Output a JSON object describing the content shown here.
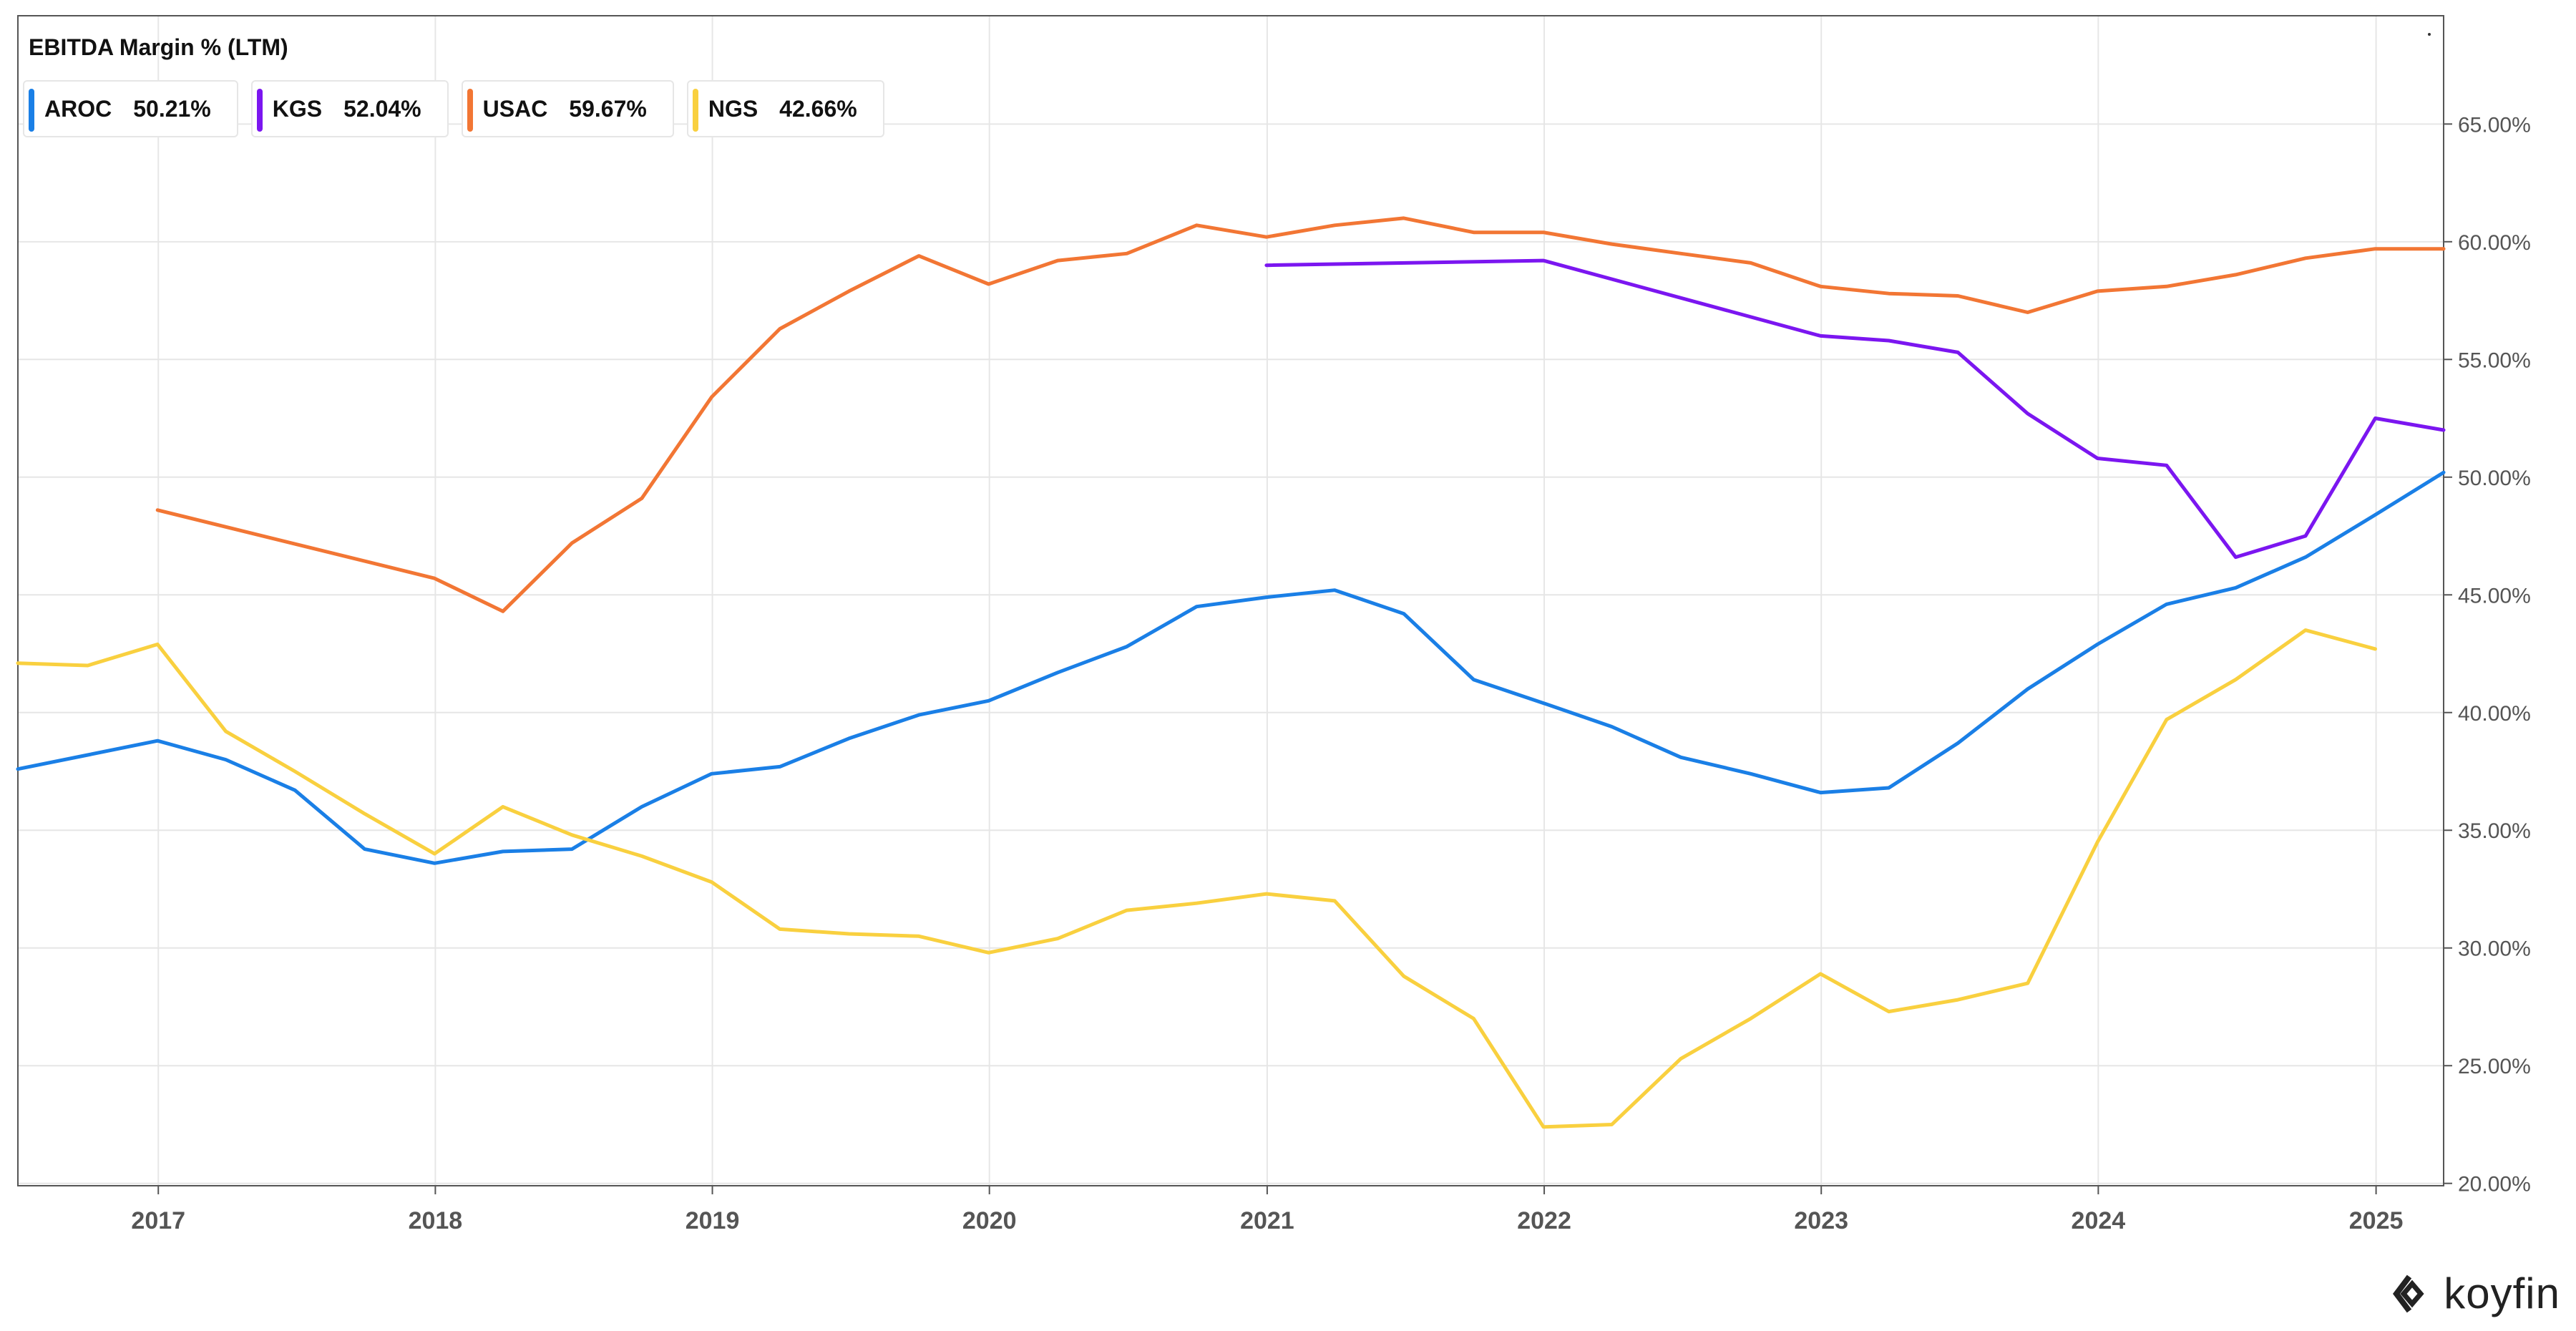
{
  "colors": {
    "AROC": "#1a7fe6",
    "KGS": "#7b16f0",
    "USAC": "#f27634",
    "NGS": "#f9d03f",
    "axis": "#555555",
    "grid": "#e6e6e6"
  },
  "branding": {
    "logo_text": "koyfin",
    "logo_icon": "koyfin-mark-icon"
  },
  "chart_data": {
    "type": "line",
    "title": "EBITDA Margin % (LTM)",
    "xlabel": "",
    "ylabel": "",
    "x_ticks": [
      "2017",
      "2018",
      "2019",
      "2020",
      "2021",
      "2022",
      "2023",
      "2024",
      "2025"
    ],
    "y_ticks": [
      "20.00%",
      "25.00%",
      "30.00%",
      "35.00%",
      "40.00%",
      "45.00%",
      "50.00%",
      "55.00%",
      "60.00%",
      "65.00%"
    ],
    "ylim": [
      19.9,
      69.6
    ],
    "xlim": [
      "2016-06-30",
      "2025-03-31"
    ],
    "y_axis_position": "right",
    "grid": true,
    "legend_position": "top-left",
    "series": [
      {
        "name": "AROC",
        "latest_label": "50.21%",
        "points": [
          [
            "2016-06-30",
            37.6
          ],
          [
            "2016-09-30",
            38.2
          ],
          [
            "2016-12-31",
            38.8
          ],
          [
            "2017-03-31",
            38.0
          ],
          [
            "2017-06-30",
            36.7
          ],
          [
            "2017-09-30",
            34.2
          ],
          [
            "2017-12-31",
            33.6
          ],
          [
            "2018-03-31",
            34.1
          ],
          [
            "2018-06-30",
            34.2
          ],
          [
            "2018-09-30",
            36.0
          ],
          [
            "2018-12-31",
            37.4
          ],
          [
            "2019-03-31",
            37.7
          ],
          [
            "2019-06-30",
            38.9
          ],
          [
            "2019-09-30",
            39.9
          ],
          [
            "2019-12-31",
            40.5
          ],
          [
            "2020-03-31",
            41.7
          ],
          [
            "2020-06-30",
            42.8
          ],
          [
            "2020-09-30",
            44.5
          ],
          [
            "2020-12-31",
            44.9
          ],
          [
            "2021-03-31",
            45.2
          ],
          [
            "2021-06-30",
            44.2
          ],
          [
            "2021-09-30",
            41.4
          ],
          [
            "2021-12-31",
            40.4
          ],
          [
            "2022-03-31",
            39.4
          ],
          [
            "2022-06-30",
            38.1
          ],
          [
            "2022-09-30",
            37.4
          ],
          [
            "2022-12-31",
            36.6
          ],
          [
            "2023-03-31",
            36.8
          ],
          [
            "2023-06-30",
            38.7
          ],
          [
            "2023-09-30",
            41.0
          ],
          [
            "2023-12-31",
            42.9
          ],
          [
            "2024-03-31",
            44.6
          ],
          [
            "2024-06-30",
            45.3
          ],
          [
            "2024-09-30",
            46.6
          ],
          [
            "2024-12-31",
            48.4
          ],
          [
            "2025-03-31",
            50.2
          ]
        ]
      },
      {
        "name": "KGS",
        "latest_label": "52.04%",
        "points": [
          [
            "2020-12-31",
            59.0
          ],
          [
            "2021-12-31",
            59.2
          ],
          [
            "2022-12-31",
            56.0
          ],
          [
            "2023-03-31",
            55.8
          ],
          [
            "2023-06-30",
            55.3
          ],
          [
            "2023-09-30",
            52.7
          ],
          [
            "2023-12-31",
            50.8
          ],
          [
            "2024-03-31",
            50.5
          ],
          [
            "2024-06-30",
            46.6
          ],
          [
            "2024-09-30",
            47.5
          ],
          [
            "2024-12-31",
            52.5
          ],
          [
            "2025-03-31",
            52.0
          ]
        ]
      },
      {
        "name": "USAC",
        "latest_label": "59.67%",
        "points": [
          [
            "2016-12-31",
            48.6
          ],
          [
            "2017-12-31",
            45.7
          ],
          [
            "2018-03-31",
            44.3
          ],
          [
            "2018-06-30",
            47.2
          ],
          [
            "2018-09-30",
            49.1
          ],
          [
            "2018-12-31",
            53.4
          ],
          [
            "2019-03-31",
            56.3
          ],
          [
            "2019-06-30",
            57.9
          ],
          [
            "2019-09-30",
            59.4
          ],
          [
            "2019-12-31",
            58.2
          ],
          [
            "2020-03-31",
            59.2
          ],
          [
            "2020-06-30",
            59.5
          ],
          [
            "2020-09-30",
            60.7
          ],
          [
            "2020-12-31",
            60.2
          ],
          [
            "2021-03-31",
            60.7
          ],
          [
            "2021-06-30",
            61.0
          ],
          [
            "2021-09-30",
            60.4
          ],
          [
            "2021-12-31",
            60.4
          ],
          [
            "2022-03-31",
            59.9
          ],
          [
            "2022-06-30",
            59.5
          ],
          [
            "2022-09-30",
            59.1
          ],
          [
            "2022-12-31",
            58.1
          ],
          [
            "2023-03-31",
            57.8
          ],
          [
            "2023-06-30",
            57.7
          ],
          [
            "2023-09-30",
            57.0
          ],
          [
            "2023-12-31",
            57.9
          ],
          [
            "2024-03-31",
            58.1
          ],
          [
            "2024-06-30",
            58.6
          ],
          [
            "2024-09-30",
            59.3
          ],
          [
            "2024-12-31",
            59.7
          ],
          [
            "2025-03-31",
            59.7
          ]
        ]
      },
      {
        "name": "NGS",
        "latest_label": "42.66%",
        "points": [
          [
            "2016-06-30",
            42.1
          ],
          [
            "2016-09-30",
            42.0
          ],
          [
            "2016-12-31",
            42.9
          ],
          [
            "2017-03-31",
            39.2
          ],
          [
            "2017-06-30",
            37.5
          ],
          [
            "2017-09-30",
            35.7
          ],
          [
            "2017-12-31",
            34.0
          ],
          [
            "2018-03-31",
            36.0
          ],
          [
            "2018-06-30",
            34.8
          ],
          [
            "2018-09-30",
            33.9
          ],
          [
            "2018-12-31",
            32.8
          ],
          [
            "2019-03-31",
            30.8
          ],
          [
            "2019-06-30",
            30.6
          ],
          [
            "2019-09-30",
            30.5
          ],
          [
            "2019-12-31",
            29.8
          ],
          [
            "2020-03-31",
            30.4
          ],
          [
            "2020-06-30",
            31.6
          ],
          [
            "2020-09-30",
            31.9
          ],
          [
            "2020-12-31",
            32.3
          ],
          [
            "2021-03-31",
            32.0
          ],
          [
            "2021-06-30",
            28.8
          ],
          [
            "2021-09-30",
            27.0
          ],
          [
            "2021-12-31",
            22.4
          ],
          [
            "2022-03-31",
            22.5
          ],
          [
            "2022-06-30",
            25.3
          ],
          [
            "2022-09-30",
            27.0
          ],
          [
            "2022-12-31",
            28.9
          ],
          [
            "2023-03-31",
            27.3
          ],
          [
            "2023-06-30",
            27.8
          ],
          [
            "2023-09-30",
            28.5
          ],
          [
            "2023-12-31",
            34.5
          ],
          [
            "2024-03-31",
            39.7
          ],
          [
            "2024-06-30",
            41.4
          ],
          [
            "2024-09-30",
            43.5
          ],
          [
            "2024-12-31",
            42.7
          ]
        ]
      }
    ]
  }
}
